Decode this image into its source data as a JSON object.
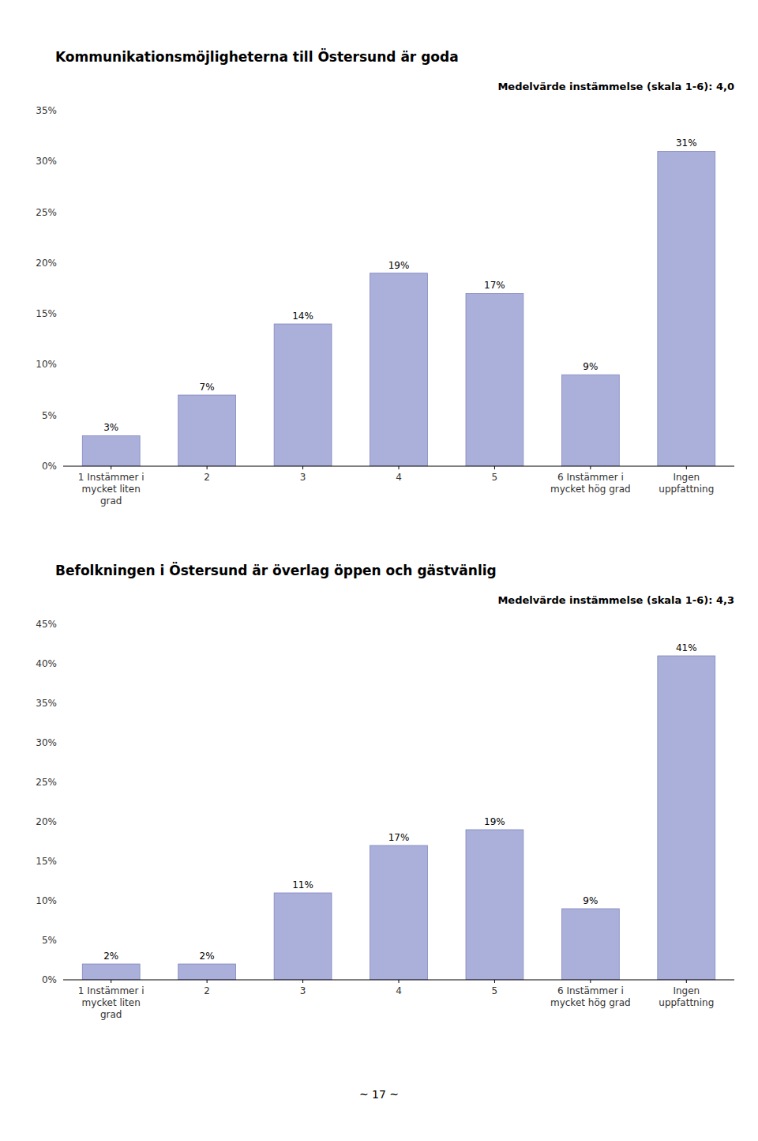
{
  "chart_data": [
    {
      "type": "bar",
      "title": "Kommunikationsmöjligheterna till Östersund är goda",
      "subtitle": "Medelvärde instämmelse (skala 1-6): 4,0",
      "categories": [
        "1 Instämmer i\nmycket liten\ngrad",
        "2",
        "3",
        "4",
        "5",
        "6 Instämmer i\nmycket hög grad",
        "Ingen\nuppfattning"
      ],
      "values": [
        3,
        7,
        14,
        19,
        17,
        9,
        31
      ],
      "value_labels": [
        "3%",
        "7%",
        "14%",
        "19%",
        "17%",
        "9%",
        "31%"
      ],
      "data_labels": true,
      "color": "#aab0d9",
      "ylim": [
        0,
        35
      ],
      "yticks": [
        {
          "value": 0,
          "label": "0%"
        },
        {
          "value": 5,
          "label": "5%"
        },
        {
          "value": 10,
          "label": "10%"
        },
        {
          "value": 15,
          "label": "15%"
        },
        {
          "value": 20,
          "label": "20%"
        },
        {
          "value": 25,
          "label": "25%"
        },
        {
          "value": 30,
          "label": "30%"
        },
        {
          "value": 35,
          "label": "35%"
        }
      ],
      "grid": false
    },
    {
      "type": "bar",
      "title": "Befolkningen i Östersund är överlag öppen och gästvänlig",
      "subtitle": "Medelvärde instämmelse (skala 1-6): 4,3",
      "categories": [
        "1 Instämmer i\nmycket liten\ngrad",
        "2",
        "3",
        "4",
        "5",
        "6 Instämmer i\nmycket hög grad",
        "Ingen\nuppfattning"
      ],
      "values": [
        2,
        2,
        11,
        17,
        19,
        9,
        41
      ],
      "value_labels": [
        "2%",
        "2%",
        "11%",
        "17%",
        "19%",
        "9%",
        "41%"
      ],
      "data_labels": true,
      "color": "#aab0d9",
      "ylim": [
        0,
        45
      ],
      "yticks": [
        {
          "value": 0,
          "label": "0%"
        },
        {
          "value": 5,
          "label": "5%"
        },
        {
          "value": 10,
          "label": "10%"
        },
        {
          "value": 15,
          "label": "15%"
        },
        {
          "value": 20,
          "label": "20%"
        },
        {
          "value": 25,
          "label": "25%"
        },
        {
          "value": 30,
          "label": "30%"
        },
        {
          "value": 35,
          "label": "35%"
        },
        {
          "value": 40,
          "label": "40%"
        },
        {
          "value": 45,
          "label": "45%"
        }
      ],
      "grid": false
    }
  ],
  "page_number": "~ 17 ~"
}
